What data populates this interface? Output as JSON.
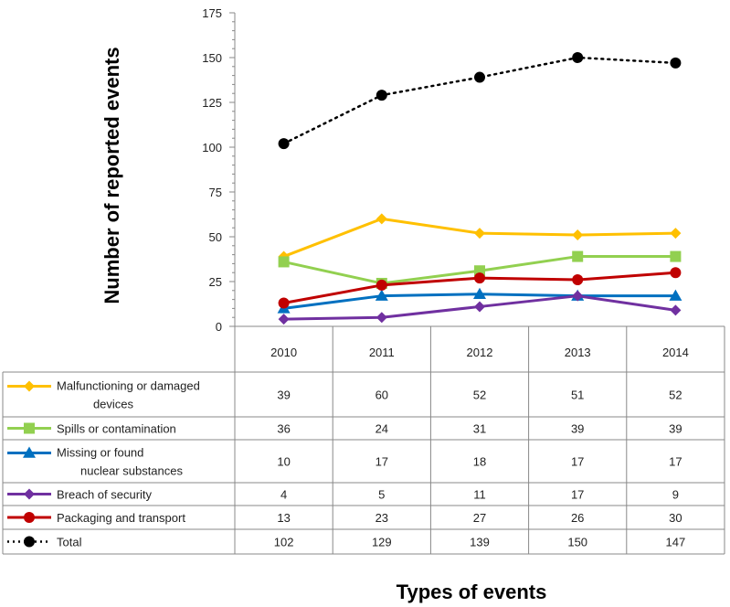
{
  "chart_data": {
    "type": "line",
    "title": "",
    "xlabel": "Types of events",
    "ylabel": "Number of reported events",
    "categories": [
      "2010",
      "2011",
      "2012",
      "2013",
      "2014"
    ],
    "ylim": [
      0,
      175
    ],
    "yticks": [
      0,
      25,
      50,
      75,
      100,
      125,
      150,
      175
    ],
    "grid": false,
    "legend": "data-table",
    "series": [
      {
        "name": "Malfunctioning or damaged devices",
        "label_lines": [
          "Malfunctioning or damaged",
          "devices"
        ],
        "color": "#ffc000",
        "marker": "diamond",
        "dash": "solid",
        "values": [
          39,
          60,
          52,
          51,
          52
        ]
      },
      {
        "name": "Spills or contamination",
        "label_lines": [
          "Spills or contamination"
        ],
        "color": "#92d050",
        "marker": "square",
        "dash": "solid",
        "values": [
          36,
          24,
          31,
          39,
          39
        ]
      },
      {
        "name": "Missing or found nuclear substances",
        "label_lines": [
          "Missing or found",
          "nuclear substances"
        ],
        "color": "#0070c0",
        "marker": "triangle",
        "dash": "solid",
        "values": [
          10,
          17,
          18,
          17,
          17
        ]
      },
      {
        "name": "Breach of security",
        "label_lines": [
          "Breach of security"
        ],
        "color": "#7030a0",
        "marker": "diamond",
        "dash": "solid",
        "values": [
          4,
          5,
          11,
          17,
          9
        ]
      },
      {
        "name": "Packaging and transport",
        "label_lines": [
          "Packaging and transport"
        ],
        "color": "#c00000",
        "marker": "circle",
        "dash": "solid",
        "values": [
          13,
          23,
          27,
          26,
          30
        ]
      },
      {
        "name": "Total",
        "label_lines": [
          "Total"
        ],
        "color": "#000000",
        "marker": "circle",
        "dash": "dotted",
        "values": [
          102,
          129,
          139,
          150,
          147
        ]
      }
    ]
  }
}
